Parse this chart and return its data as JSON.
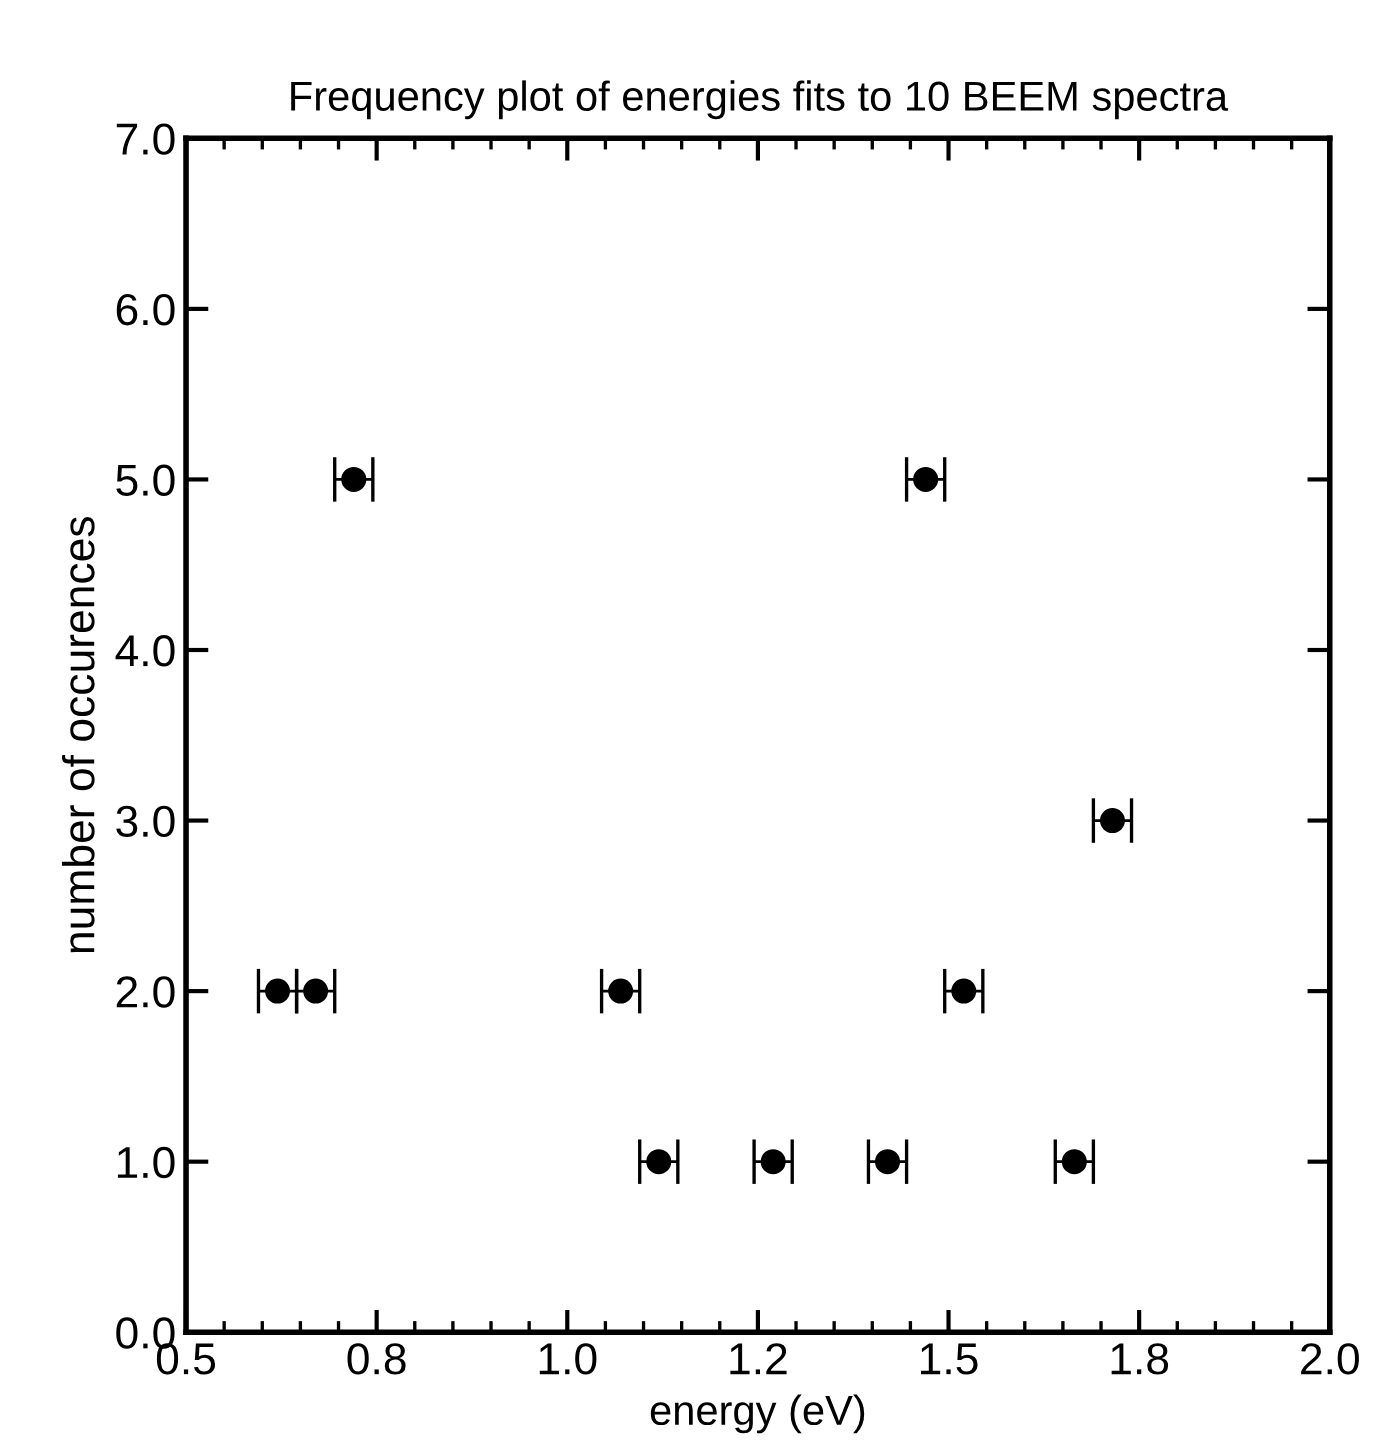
{
  "chart_data": {
    "type": "scatter",
    "title": "Frequency plot of energies fits to 10 BEEM spectra",
    "xlabel": "energy (eV)",
    "ylabel": "number of occurences",
    "x": [
      0.62,
      0.67,
      0.72,
      1.07,
      1.12,
      1.27,
      1.42,
      1.47,
      1.52,
      1.665,
      1.715
    ],
    "values": [
      2,
      2,
      5,
      2,
      1,
      1,
      1,
      5,
      2,
      1,
      3
    ],
    "xerrors": [
      0.025,
      0.025,
      0.025,
      0.025,
      0.025,
      0.025,
      0.025,
      0.025,
      0.025,
      0.025,
      0.025
    ],
    "color": "#000000",
    "marker": "circle",
    "grid": false,
    "xlim": [
      0.5,
      2.0
    ],
    "ylim": [
      0.0,
      7.0
    ],
    "xticks": [
      0.5,
      {
        "value": 0.75,
        "label": "0.8"
      },
      {
        "value": 1.0,
        "label": "1.0"
      },
      {
        "value": 1.25,
        "label": "1.2"
      },
      1.5,
      {
        "value": 1.75,
        "label": "1.8"
      },
      {
        "value": 2.0,
        "label": "2.0"
      }
    ],
    "yticks": [
      {
        "value": 0,
        "label": "0.0"
      },
      {
        "value": 1,
        "label": "1.0"
      },
      {
        "value": 2,
        "label": "2.0"
      },
      {
        "value": 3,
        "label": "3.0"
      },
      {
        "value": 4,
        "label": "4.0"
      },
      {
        "value": 5,
        "label": "5.0"
      },
      {
        "value": 6,
        "label": "6.0"
      },
      {
        "value": 7,
        "label": "7.0"
      }
    ]
  }
}
